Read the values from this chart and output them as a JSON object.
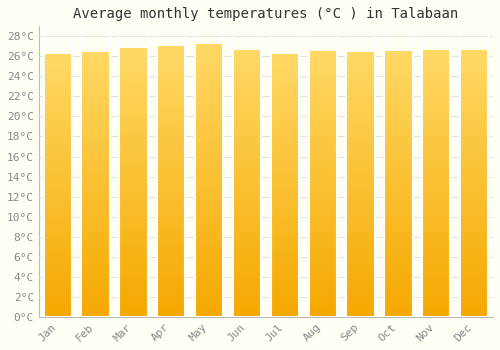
{
  "title": "Average monthly temperatures (°C ) in Talabaan",
  "months": [
    "Jan",
    "Feb",
    "Mar",
    "Apr",
    "May",
    "Jun",
    "Jul",
    "Aug",
    "Sep",
    "Oct",
    "Nov",
    "Dec"
  ],
  "values": [
    26.2,
    26.4,
    26.8,
    27.0,
    27.2,
    26.6,
    26.2,
    26.5,
    26.4,
    26.5,
    26.6,
    26.6
  ],
  "bar_color_top": "#FFD966",
  "bar_color_bottom": "#F5A800",
  "background_color": "#FFFFF4",
  "grid_color": "#DDDDDD",
  "ylim": [
    0,
    29
  ],
  "yticks": [
    0,
    2,
    4,
    6,
    8,
    10,
    12,
    14,
    16,
    18,
    20,
    22,
    24,
    26,
    28
  ],
  "title_fontsize": 10,
  "tick_fontsize": 8,
  "bar_width": 0.75
}
